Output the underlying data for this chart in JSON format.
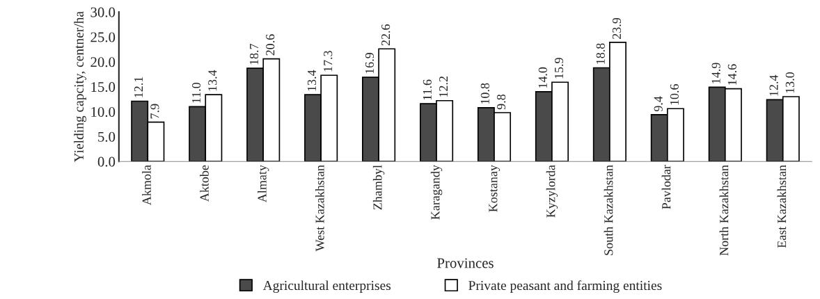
{
  "chart_data": {
    "type": "bar",
    "xlabel": "Provinces",
    "ylabel": "Yielding capcity, centner/ha",
    "categories": [
      "Akmola",
      "Aktobe",
      "Almaty",
      "West Kazakhstan",
      "Zhambyl",
      "Karagandy",
      "Kostanay",
      "Kyzylorda",
      "South Kazakhstan",
      "Pavlodar",
      "North Kazakhstan",
      "East Kazakhstan"
    ],
    "series": [
      {
        "name": "Agricultural enterprises",
        "color": "#4a4a4a",
        "values": [
          12.1,
          11.0,
          18.7,
          13.4,
          16.9,
          11.6,
          10.8,
          14.0,
          18.8,
          9.4,
          14.9,
          12.4
        ],
        "value_labels": [
          "12.1",
          "11.0",
          "18.7",
          "13.4",
          "16.9",
          "11.6",
          "10.8",
          "14.0",
          "18.8",
          "9.4",
          "14.9",
          "12.4"
        ]
      },
      {
        "name": "Private peasant and farming entities",
        "color": "#ffffff",
        "values": [
          7.9,
          13.4,
          20.6,
          17.3,
          22.6,
          12.2,
          9.8,
          15.9,
          23.9,
          10.6,
          14.6,
          13.0
        ],
        "value_labels": [
          "7.9",
          "13.4",
          "20.6",
          "17.3",
          "22.6",
          "12.2",
          "9.8",
          "15.9",
          "23.9",
          "10.6",
          "14.6",
          "13.0"
        ]
      }
    ],
    "ylim": [
      0,
      30
    ],
    "yticks": [
      {
        "value": 0,
        "label": "0.0"
      },
      {
        "value": 5,
        "label": "5.0"
      },
      {
        "value": 10,
        "label": "10.0"
      },
      {
        "value": 15,
        "label": "15.0"
      },
      {
        "value": 20,
        "label": "20.0"
      },
      {
        "value": 25,
        "label": "25.0"
      },
      {
        "value": 30,
        "label": "30.0"
      }
    ],
    "grid": false,
    "legend": "bottom"
  }
}
